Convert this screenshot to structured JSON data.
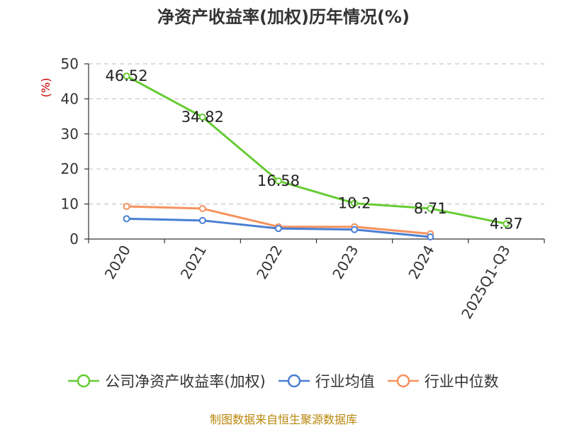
{
  "chart_data": {
    "type": "line",
    "title": "净资产收益率(加权)历年情况(%)",
    "ylabel": "(%)",
    "xlabel": "",
    "categories": [
      "2020",
      "2021",
      "2022",
      "2023",
      "2024",
      "2025Q1-Q3"
    ],
    "ylim": [
      0,
      50
    ],
    "yticks": [
      0,
      10,
      20,
      30,
      40,
      50
    ],
    "grid": true,
    "legend_position": "bottom",
    "series": [
      {
        "name": "公司净资产收益率(加权)",
        "color": "#66cc33",
        "values": [
          46.52,
          34.82,
          16.58,
          10.2,
          8.71,
          4.37
        ],
        "labels": [
          "46.52",
          "34.82",
          "16.58",
          "10.2",
          "8.71",
          "4.37"
        ]
      },
      {
        "name": "行业均值",
        "color": "#4a7fd4",
        "values": [
          5.8,
          5.3,
          3.0,
          2.7,
          0.6,
          null
        ]
      },
      {
        "name": "行业中位数",
        "color": "#f5925e",
        "values": [
          9.3,
          8.7,
          3.5,
          3.5,
          1.5,
          null
        ]
      }
    ]
  },
  "source_note": "制图数据来自恒生聚源数据库"
}
